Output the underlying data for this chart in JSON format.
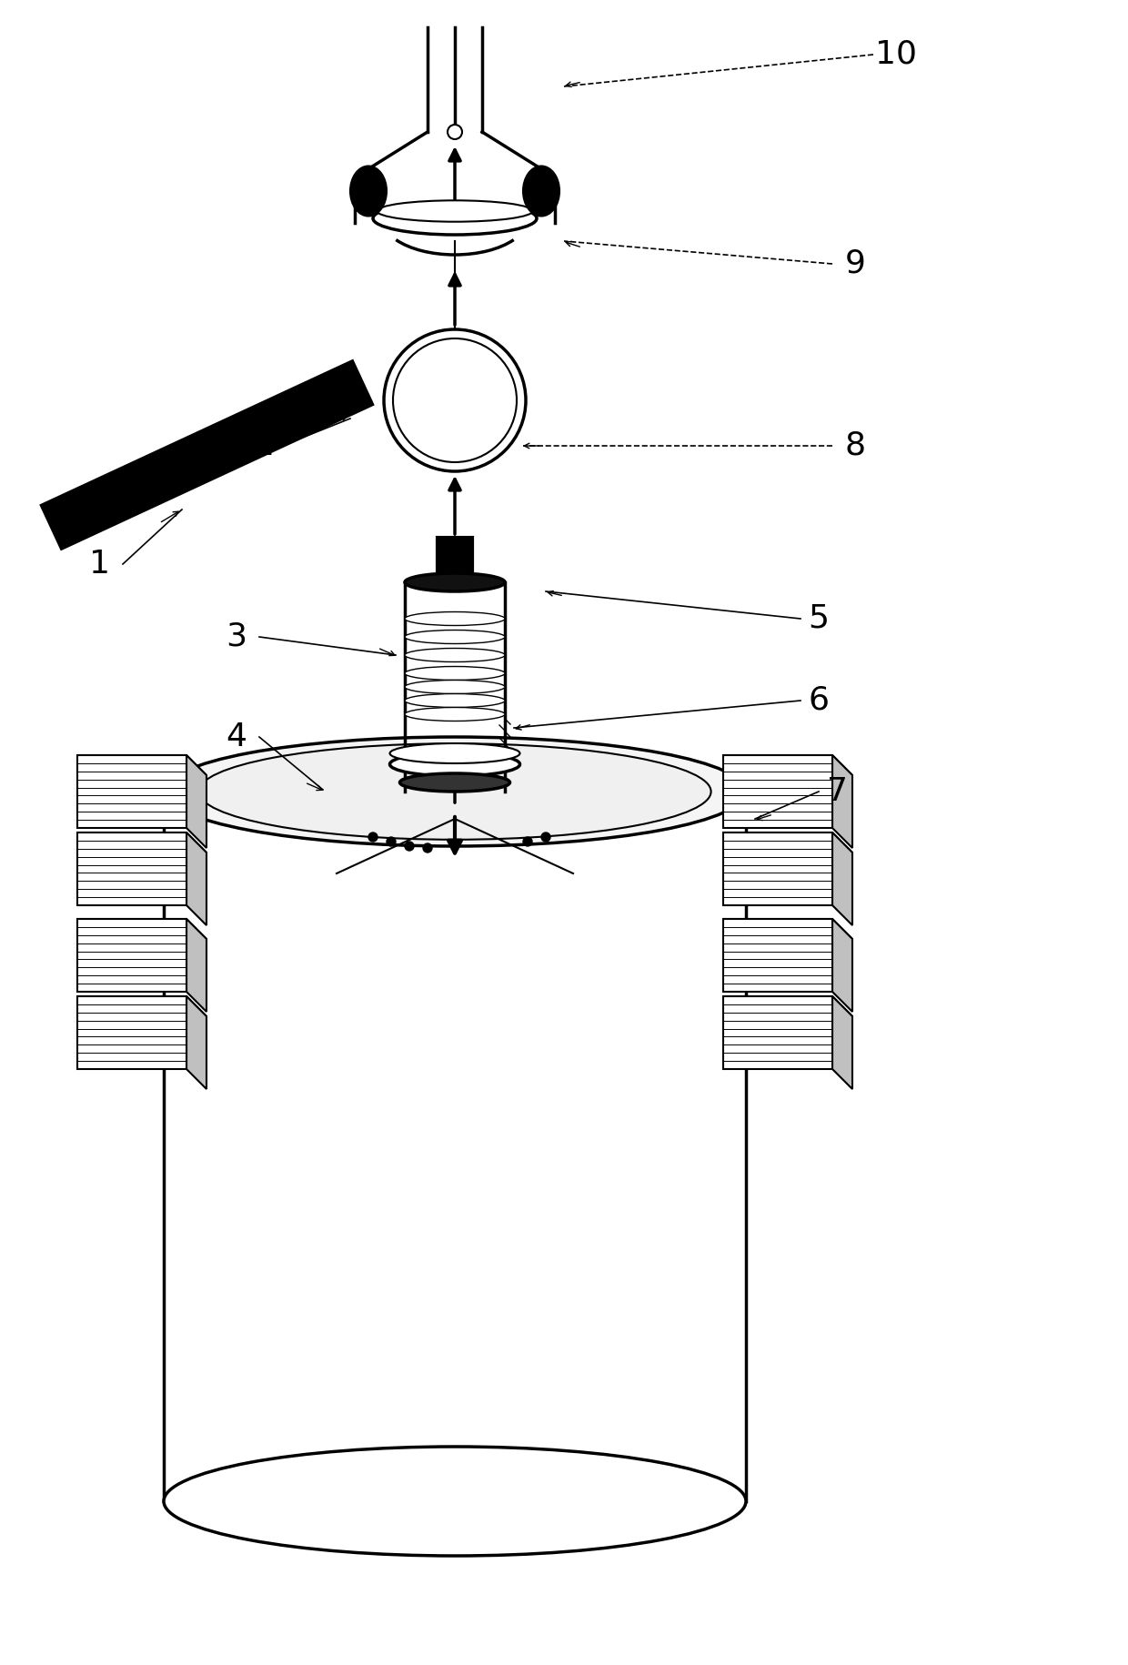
{
  "bg_color": "#ffffff",
  "line_color": "#000000",
  "fig_width": 12.4,
  "fig_height": 18.3,
  "dpi": 100,
  "xlim": [
    0,
    1240
  ],
  "ylim": [
    0,
    1830
  ]
}
